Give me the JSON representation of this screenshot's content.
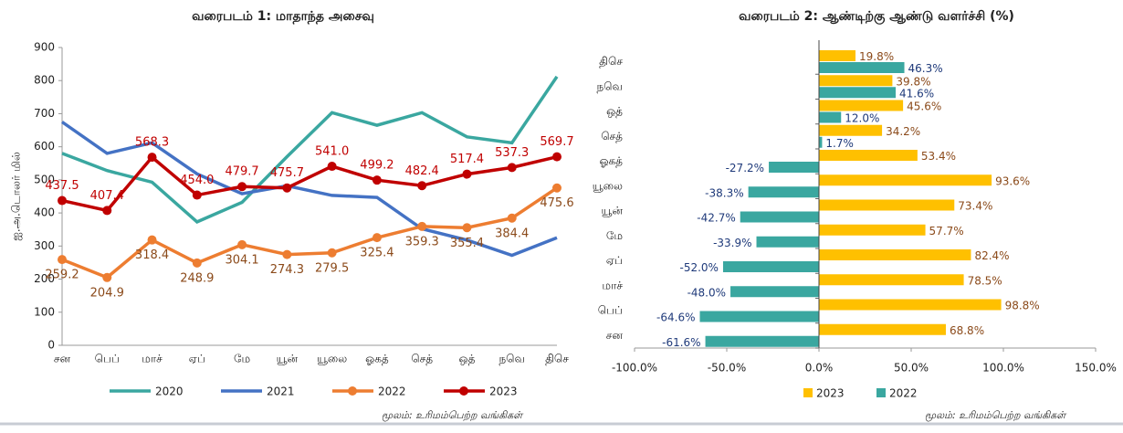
{
  "chart_data": [
    {
      "type": "line",
      "title": "வரைபடம் 1: மாதாந்த அசைவு",
      "y_label": "ஐ.அ.டொலர் மில்",
      "note": "மூலம்: உரிமம்பெற்ற வங்கிகள்",
      "categories": [
        "சன",
        "பெப்",
        "மாச்",
        "ஏப்",
        "மே",
        "யூன்",
        "யூலை",
        "ஓகத்",
        "செத்",
        "ஒத்",
        "நவெ",
        "திசெ"
      ],
      "ylim": [
        0,
        900
      ],
      "yticks": [
        0,
        100,
        200,
        300,
        400,
        500,
        600,
        700,
        800,
        900
      ],
      "series": [
        {
          "name": "2020",
          "color": "#3aa7a0",
          "values": [
            580,
            528,
            493,
            373,
            432,
            570,
            703,
            665,
            703,
            630,
            612,
            812
          ]
        },
        {
          "name": "2021",
          "color": "#4472c4",
          "values": [
            675,
            580,
            612,
            518,
            458,
            482,
            453,
            447,
            352,
            318,
            272,
            325
          ]
        },
        {
          "name": "2022",
          "color": "#ed7d31",
          "marker": true,
          "label_color": "#8b4a1a",
          "label_pos": "below",
          "values": [
            259.2,
            204.9,
            318.4,
            248.9,
            304.1,
            274.3,
            279.5,
            325.4,
            359.3,
            355.4,
            384.4,
            475.6
          ],
          "value_labels": [
            "259.2",
            "204.9",
            "318.4",
            "248.9",
            "304.1",
            "274.3",
            "279.5",
            "325.4",
            "359.3",
            "355.4",
            "384.4",
            "475.6"
          ]
        },
        {
          "name": "2023",
          "color": "#c00000",
          "marker": true,
          "label_color": "#c00000",
          "label_pos": "above",
          "values": [
            437.5,
            407.4,
            568.3,
            454.0,
            479.7,
            475.7,
            541.0,
            499.2,
            482.4,
            517.4,
            537.3,
            569.7
          ],
          "value_labels": [
            "437.5",
            "407.4",
            "568.3",
            "454.0",
            "479.7",
            "475.7",
            "541.0",
            "499.2",
            "482.4",
            "517.4",
            "537.3",
            "569.7"
          ]
        }
      ]
    },
    {
      "type": "hbar",
      "title": "வரைபடம் 2: ஆண்டிற்கு ஆண்டு வளர்ச்சி (%)",
      "note": "மூலம்: உரிமம்பெற்ற வங்கிகள்",
      "categories": [
        "சன",
        "பெப்",
        "மாச்",
        "ஏப்",
        "மே",
        "யூன்",
        "யூலை",
        "ஓகத்",
        "செத்",
        "ஒத்",
        "நவெ",
        "திசெ"
      ],
      "xlim": [
        -100,
        150
      ],
      "xticks": [
        {
          "value": -100,
          "label": "-100.0%"
        },
        {
          "value": -50,
          "label": "-50.0%"
        },
        {
          "value": 0,
          "label": "0.0%"
        },
        {
          "value": 50,
          "label": "50.0%"
        },
        {
          "value": 100,
          "label": "100.0%"
        },
        {
          "value": 150,
          "label": "150.0%"
        }
      ],
      "series": [
        {
          "name": "2023",
          "color": "#ffc000",
          "label_color": "#8b4a1a",
          "values": [
            68.8,
            98.8,
            78.5,
            82.4,
            57.7,
            73.4,
            93.6,
            53.4,
            34.2,
            45.6,
            39.8,
            19.8
          ],
          "value_labels": [
            "68.8%",
            "98.8%",
            "78.5%",
            "82.4%",
            "57.7%",
            "73.4%",
            "93.6%",
            "53.4%",
            "34.2%",
            "45.6%",
            "39.8%",
            "19.8%"
          ]
        },
        {
          "name": "2022",
          "color": "#3aa7a0",
          "label_color": "#1f3a7a",
          "values": [
            -61.6,
            -64.6,
            -48.0,
            -52.0,
            -33.9,
            -42.7,
            -38.3,
            -27.2,
            1.7,
            12.0,
            41.6,
            46.3
          ],
          "value_labels": [
            "-61.6%",
            "-64.6%",
            "-48.0%",
            "-52.0%",
            "-33.9%",
            "-42.7%",
            "-38.3%",
            "-27.2%",
            "1.7%",
            "12.0%",
            "41.6%",
            "46.3%"
          ]
        }
      ]
    }
  ]
}
